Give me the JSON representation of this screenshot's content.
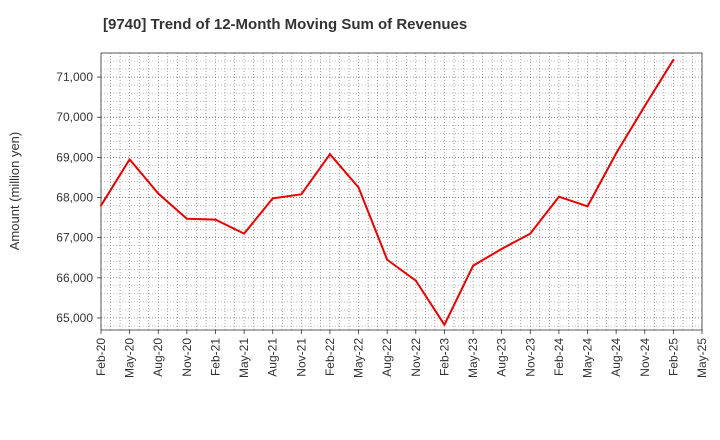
{
  "chart_data": {
    "type": "line",
    "title": "[9740]  Trend of 12-Month Moving Sum of Revenues",
    "xlabel": "",
    "ylabel": "Amount (million yen)",
    "ylim": [
      64700,
      71600
    ],
    "yticks": [
      65000,
      66000,
      67000,
      68000,
      69000,
      70000,
      71000
    ],
    "ytick_labels": [
      "65,000",
      "66,000",
      "67,000",
      "68,000",
      "69,000",
      "70,000",
      "71,000"
    ],
    "xtick_labels": [
      "Feb-20",
      "May-20",
      "Aug-20",
      "Nov-20",
      "Feb-21",
      "May-21",
      "Aug-21",
      "Nov-21",
      "Feb-22",
      "May-22",
      "Aug-22",
      "Nov-22",
      "Feb-23",
      "May-23",
      "Aug-23",
      "Nov-23",
      "Feb-24",
      "May-24",
      "Aug-24",
      "Nov-24",
      "Feb-25",
      "May-25"
    ],
    "grid": true,
    "line_color": "#e60000",
    "series": [
      {
        "x": [
          "Feb-20",
          "May-20",
          "Aug-20",
          "Nov-20",
          "Feb-21",
          "May-21",
          "Aug-21",
          "Nov-21",
          "Feb-22",
          "May-22",
          "Aug-22",
          "Nov-22",
          "Feb-23",
          "May-23",
          "Aug-23",
          "Nov-23",
          "Feb-24",
          "May-24",
          "Aug-24",
          "Nov-24",
          "Feb-25"
        ],
        "values": [
          67800,
          68950,
          68100,
          67470,
          67450,
          67100,
          67980,
          68080,
          69080,
          68250,
          66450,
          65930,
          64830,
          66300,
          66720,
          67100,
          68020,
          67780,
          69100,
          70280,
          71430
        ]
      }
    ]
  }
}
